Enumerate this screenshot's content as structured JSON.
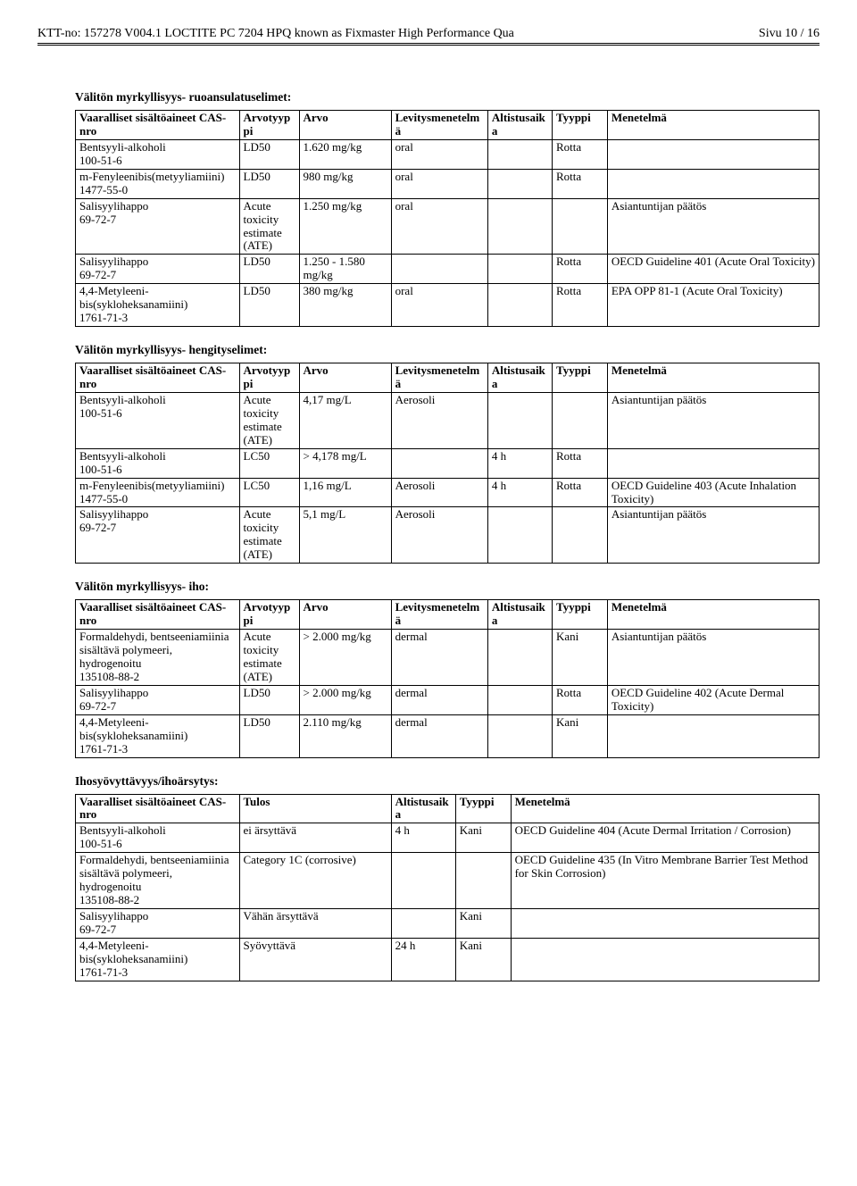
{
  "header": {
    "doc_id": "KTT-no: 157278  V004.1   LOCTITE PC 7204 HPQ known as Fixmaster High Performance Qua",
    "page": "Sivu 10 / 16"
  },
  "tables_common": {
    "col_widths_7": [
      178,
      65,
      100,
      105,
      70,
      60,
      230
    ],
    "col_widths_5": [
      178,
      165,
      70,
      60,
      335
    ],
    "head7": [
      "Vaaralliset sisältöaineet CAS-nro",
      "Arvotyyppi",
      "Arvo",
      "Levitysmenetelmä",
      "Altistusaika",
      "Tyyppi",
      "Menetelmä"
    ],
    "head5": [
      "Vaaralliset sisältöaineet CAS-nro",
      "Tulos",
      "Altistusaika",
      "Tyyppi",
      "Menetelmä"
    ]
  },
  "sections": [
    {
      "title": "Välitön myrkyllisyys- ruoansulatuselimet:",
      "cols": 7,
      "rows": [
        [
          "Bentsyyli-alkoholi\n100-51-6",
          "LD50",
          "1.620 mg/kg",
          "oral",
          "",
          "Rotta",
          ""
        ],
        [
          "m-Fenyleenibis(metyyliamiini)\n1477-55-0",
          "LD50",
          "980 mg/kg",
          "oral",
          "",
          "Rotta",
          ""
        ],
        [
          "Salisyylihappo\n69-72-7",
          "Acute toxicity estimate (ATE)",
          "1.250 mg/kg",
          "oral",
          "",
          "",
          "Asiantuntijan päätös"
        ],
        [
          "Salisyylihappo\n69-72-7",
          "LD50",
          "1.250 - 1.580 mg/kg",
          "",
          "",
          "Rotta",
          "OECD Guideline 401 (Acute Oral Toxicity)"
        ],
        [
          "4,4-Metyleeni-bis(sykloheksanamiini)\n1761-71-3",
          "LD50",
          "380 mg/kg",
          "oral",
          "",
          "Rotta",
          "EPA OPP 81-1 (Acute Oral Toxicity)"
        ]
      ]
    },
    {
      "title": "Välitön myrkyllisyys- hengityselimet:",
      "cols": 7,
      "rows": [
        [
          "Bentsyyli-alkoholi\n100-51-6",
          "Acute toxicity estimate (ATE)",
          "4,17 mg/L",
          "Aerosoli",
          "",
          "",
          "Asiantuntijan päätös"
        ],
        [
          "Bentsyyli-alkoholi\n100-51-6",
          "LC50",
          "> 4,178 mg/L",
          "",
          "4 h",
          "Rotta",
          ""
        ],
        [
          "m-Fenyleenibis(metyyliamiini)\n1477-55-0",
          "LC50",
          "1,16 mg/L",
          "Aerosoli",
          "4 h",
          "Rotta",
          "OECD Guideline 403 (Acute Inhalation Toxicity)"
        ],
        [
          "Salisyylihappo\n69-72-7",
          "Acute toxicity estimate (ATE)",
          "5,1 mg/L",
          "Aerosoli",
          "",
          "",
          "Asiantuntijan päätös"
        ]
      ]
    },
    {
      "title": "Välitön myrkyllisyys- iho:",
      "cols": 7,
      "rows": [
        [
          "Formaldehydi, bentseeniamiinia sisältävä polymeeri, hydrogenoitu\n135108-88-2",
          "Acute toxicity estimate (ATE)",
          "> 2.000 mg/kg",
          "dermal",
          "",
          "Kani",
          "Asiantuntijan päätös"
        ],
        [
          "Salisyylihappo\n69-72-7",
          "LD50",
          "> 2.000 mg/kg",
          "dermal",
          "",
          "Rotta",
          "OECD Guideline 402 (Acute Dermal Toxicity)"
        ],
        [
          "4,4-Metyleeni-bis(sykloheksanamiini)\n1761-71-3",
          "LD50",
          "2.110 mg/kg",
          "dermal",
          "",
          "Kani",
          ""
        ]
      ]
    },
    {
      "title": "Ihosyövyttävyys/ihoärsytys:",
      "cols": 5,
      "rows": [
        [
          "Bentsyyli-alkoholi\n100-51-6",
          "ei ärsyttävä",
          "4 h",
          "Kani",
          "OECD Guideline 404 (Acute Dermal Irritation / Corrosion)"
        ],
        [
          "Formaldehydi, bentseeniamiinia sisältävä polymeeri, hydrogenoitu\n135108-88-2",
          "Category 1C (corrosive)",
          "",
          "",
          "OECD Guideline 435 (In Vitro Membrane Barrier Test Method for Skin Corrosion)"
        ],
        [
          "Salisyylihappo\n69-72-7",
          "Vähän ärsyttävä",
          "",
          "Kani",
          ""
        ],
        [
          "4,4-Metyleeni-bis(sykloheksanamiini)\n1761-71-3",
          "Syövyttävä",
          "24 h",
          "Kani",
          ""
        ]
      ]
    }
  ]
}
